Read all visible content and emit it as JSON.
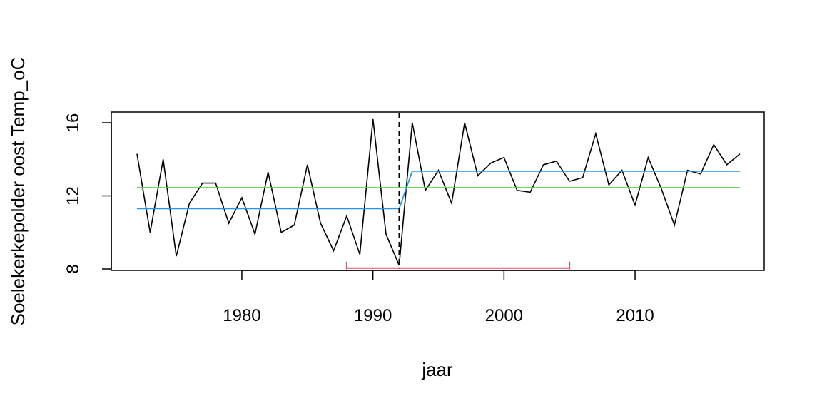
{
  "chart_data": {
    "type": "line",
    "title": "",
    "xlabel": "jaar",
    "ylabel": "Soelekerkepolder oost Temp_oC",
    "xlim": [
      1972,
      2018
    ],
    "ylim": [
      8,
      16.5
    ],
    "x_ticks": [
      "1980",
      "1990",
      "2000",
      "2010"
    ],
    "y_ticks": [
      "8",
      "12",
      "16"
    ],
    "grid": false,
    "legend": "none",
    "colors": {
      "data": "#000000",
      "mean": "#61d04f",
      "step": "#2297e6",
      "interval": "#df536b",
      "breakpoint": "#000000"
    },
    "series": [
      {
        "x": [
          1972,
          1973,
          1974,
          1975,
          1976,
          1977,
          1978,
          1979,
          1980,
          1981,
          1982,
          1983,
          1984,
          1985,
          1986,
          1987,
          1988,
          1989,
          1990,
          1991,
          1992,
          1993,
          1994,
          1995,
          1996,
          1997,
          1998,
          1999,
          2000,
          2001,
          2002,
          2003,
          2004,
          2005,
          2006,
          2007,
          2008,
          2009,
          2010,
          2011,
          2012,
          2013,
          2014,
          2015,
          2016,
          2017,
          2018
        ],
        "y": [
          14.3,
          10.0,
          14.0,
          8.7,
          11.6,
          12.7,
          12.7,
          10.5,
          11.9,
          9.9,
          13.3,
          10.0,
          10.4,
          13.7,
          10.5,
          9.0,
          10.9,
          8.8,
          16.2,
          9.9,
          8.2,
          16.0,
          12.3,
          13.4,
          11.6,
          16.0,
          13.1,
          13.8,
          14.1,
          12.3,
          12.2,
          13.7,
          13.9,
          12.8,
          13.0,
          15.4,
          12.6,
          13.4,
          11.5,
          14.1,
          12.4,
          10.4,
          13.4,
          13.2,
          14.8,
          13.7,
          14.3
        ]
      },
      {
        "x": [
          1972,
          2018
        ],
        "y": [
          12.45,
          12.45
        ]
      },
      {
        "x": [
          1972,
          1992,
          1993,
          2018
        ],
        "y": [
          11.3,
          11.3,
          13.35,
          13.35
        ]
      }
    ],
    "breakpoint": {
      "x": 1992
    },
    "confidence_interval": {
      "from": 1988,
      "to": 2005,
      "y": 8.05
    }
  }
}
